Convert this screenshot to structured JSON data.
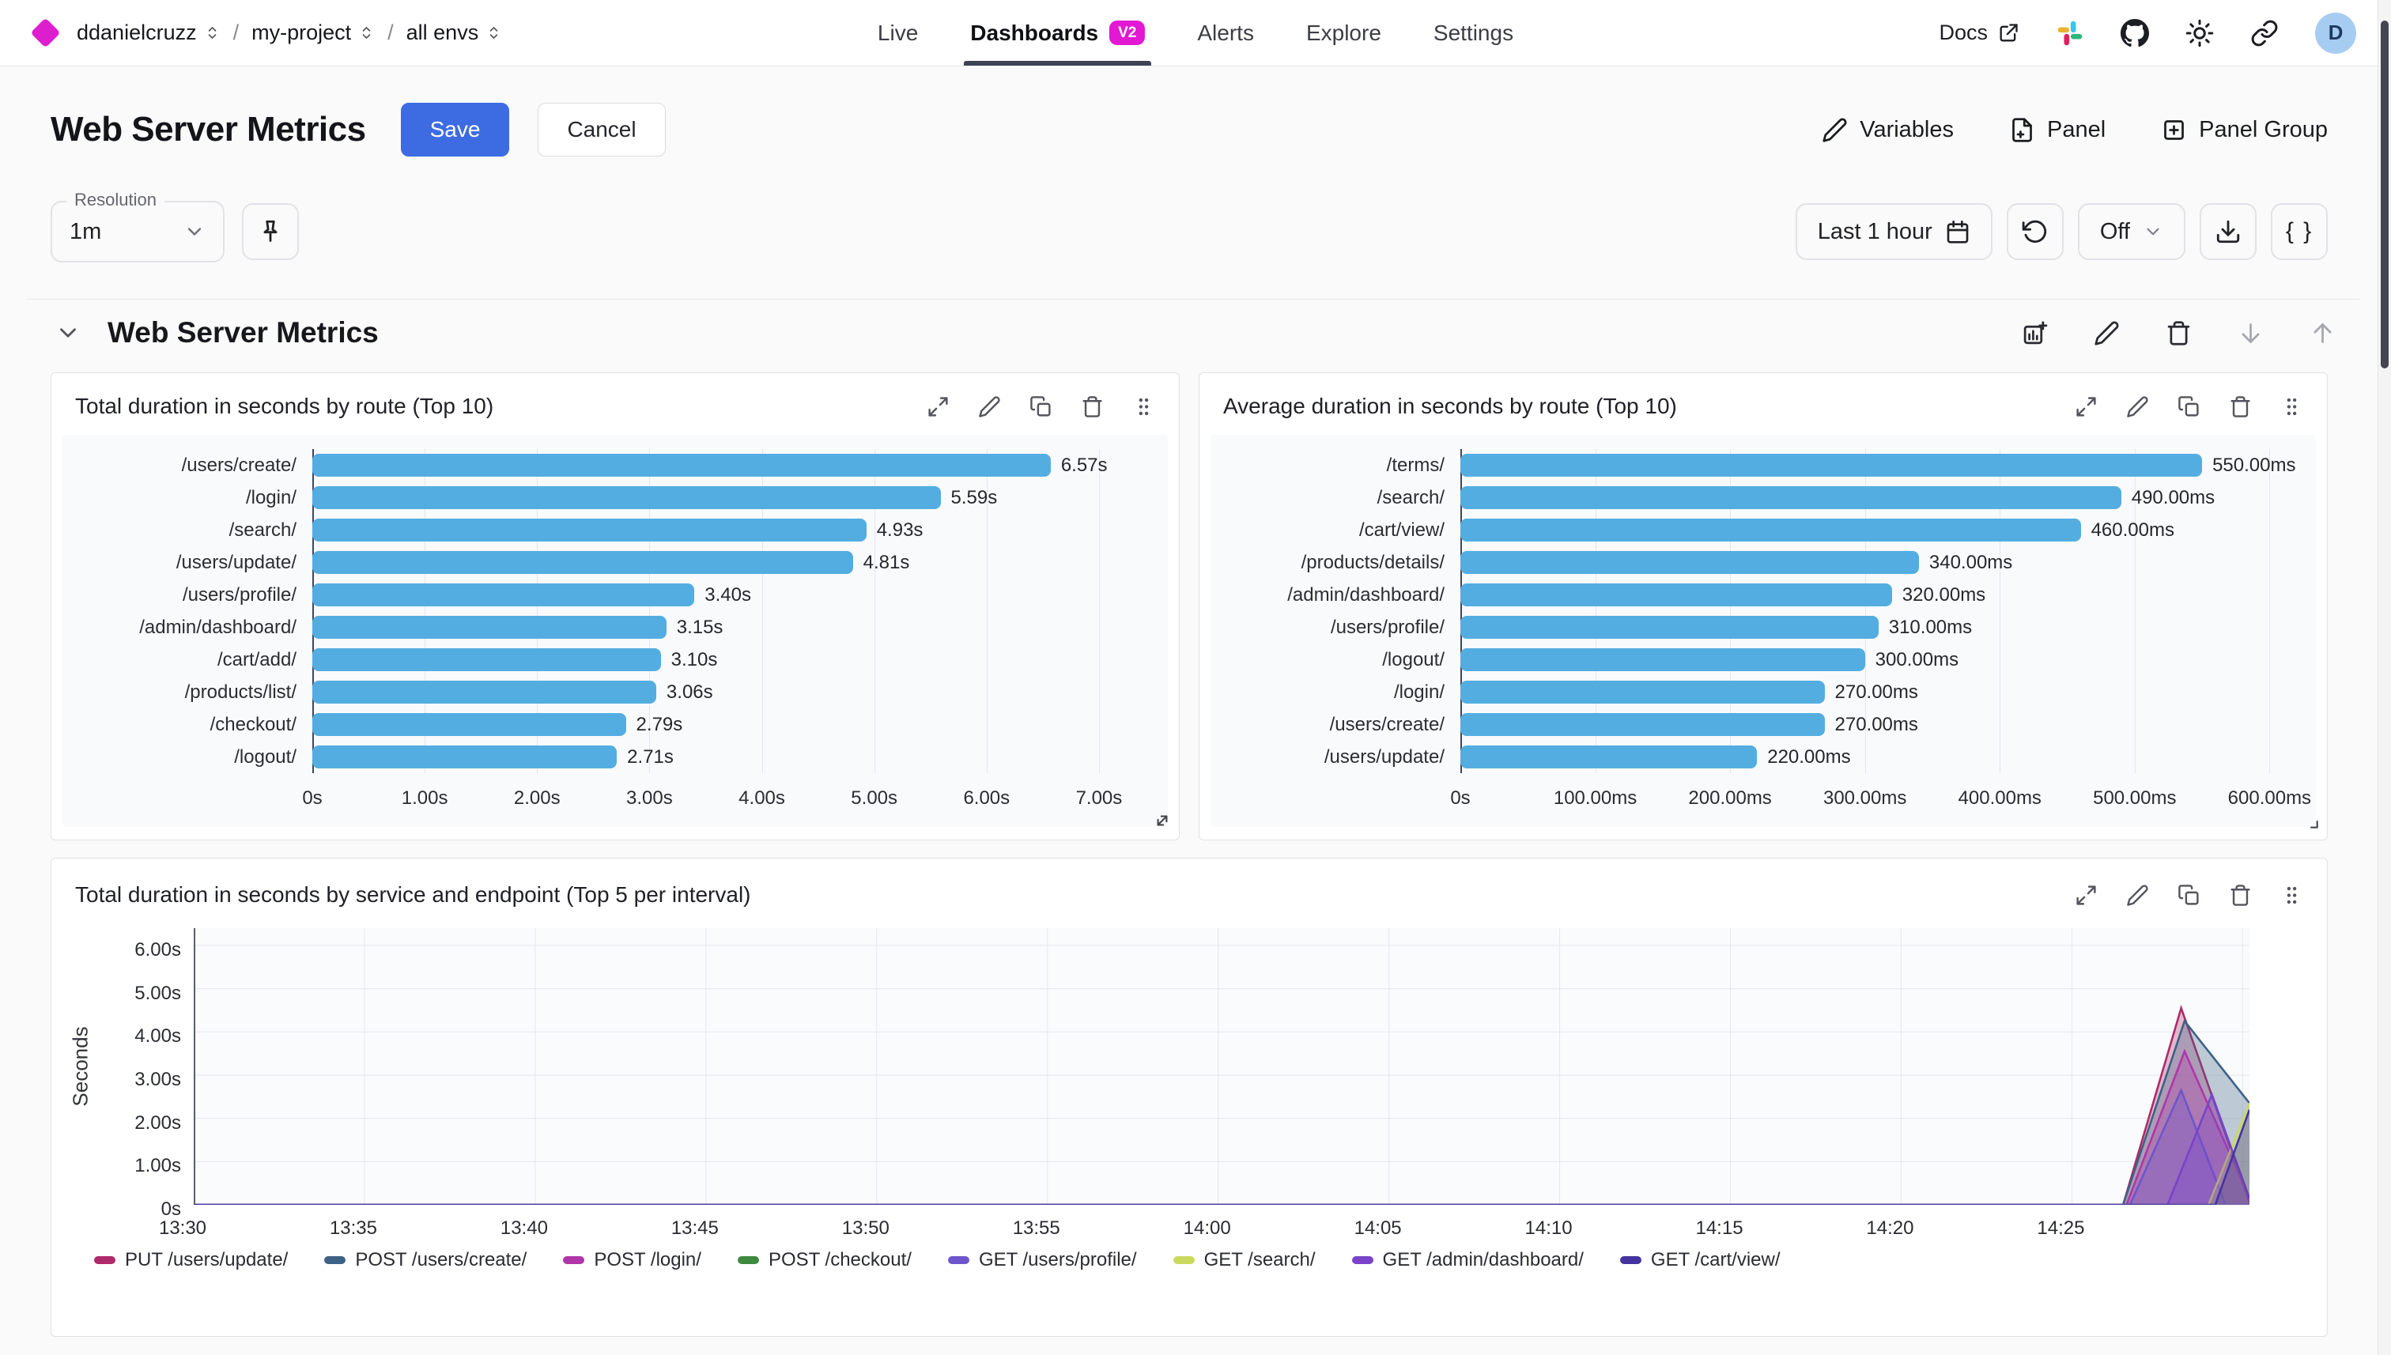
{
  "colors": {
    "accent_blue": "#3d6ce2",
    "badge_magenta": "#e218d3",
    "logo_magenta": "#dd1ece",
    "bar_blue": "#54ade0",
    "tab_underline": "#3e4354"
  },
  "icons": {
    "logo": "diamond-shape",
    "breadcrumb-selector": "up-down-chevrons",
    "docs": "external-link",
    "nav": [
      "slack-icon",
      "github-icon",
      "sun-icon",
      "link-icon"
    ],
    "toolbar": [
      "pin-icon",
      "calendar-icon",
      "refresh-ccw-icon",
      "chevron-down-icon",
      "download-icon",
      "braces-glyph"
    ],
    "panel": [
      "expand-icon",
      "pencil-icon",
      "copy-icon",
      "trash-icon",
      "drag-handle-dots"
    ],
    "section": [
      "chevron-down-icon",
      "add-chart-icon",
      "pencil-icon",
      "trash-icon",
      "arrow-down-icon",
      "arrow-up-icon"
    ]
  },
  "nav": {
    "breadcrumb": [
      {
        "label": "ddanielcruzz"
      },
      {
        "label": "my-project"
      },
      {
        "label": "all envs"
      }
    ],
    "tabs": [
      {
        "label": "Live",
        "active": false
      },
      {
        "label": "Dashboards",
        "active": true,
        "badge": "V2"
      },
      {
        "label": "Alerts",
        "active": false
      },
      {
        "label": "Explore",
        "active": false
      },
      {
        "label": "Settings",
        "active": false
      }
    ],
    "docs_label": "Docs",
    "avatar_letter": "D"
  },
  "header": {
    "title": "Web Server Metrics",
    "save_label": "Save",
    "cancel_label": "Cancel",
    "actions": [
      {
        "label": "Variables"
      },
      {
        "label": "Panel"
      },
      {
        "label": "Panel Group"
      }
    ]
  },
  "toolbar": {
    "resolution_label": "Resolution",
    "resolution_value": "1m",
    "time_range": "Last 1 hour",
    "autorefresh_value": "Off",
    "braces_label": "{ }"
  },
  "section": {
    "title": "Web Server Metrics"
  },
  "chart_data": [
    {
      "type": "bar",
      "orientation": "horizontal",
      "title": "Total duration in seconds by route (Top 10)",
      "categories": [
        "/users/create/",
        "/login/",
        "/search/",
        "/users/update/",
        "/users/profile/",
        "/admin/dashboard/",
        "/cart/add/",
        "/products/list/",
        "/checkout/",
        "/logout/"
      ],
      "values": [
        6.57,
        5.59,
        4.93,
        4.81,
        3.4,
        3.15,
        3.1,
        3.06,
        2.79,
        2.71
      ],
      "value_labels": [
        "6.57s",
        "5.59s",
        "4.93s",
        "4.81s",
        "3.40s",
        "3.15s",
        "3.10s",
        "3.06s",
        "2.79s",
        "2.71s"
      ],
      "x_ticks": [
        {
          "v": 0,
          "label": "0s"
        },
        {
          "v": 1,
          "label": "1.00s"
        },
        {
          "v": 2,
          "label": "2.00s"
        },
        {
          "v": 3,
          "label": "3.00s"
        },
        {
          "v": 4,
          "label": "4.00s"
        },
        {
          "v": 5,
          "label": "5.00s"
        },
        {
          "v": 6,
          "label": "6.00s"
        },
        {
          "v": 7,
          "label": "7.00s"
        }
      ],
      "xmax": 7.5,
      "bar_color": "#54ade0",
      "grid": true
    },
    {
      "type": "bar",
      "orientation": "horizontal",
      "title": "Average duration in seconds by route (Top 10)",
      "categories": [
        "/terms/",
        "/search/",
        "/cart/view/",
        "/products/details/",
        "/admin/dashboard/",
        "/users/profile/",
        "/logout/",
        "/login/",
        "/users/create/",
        "/users/update/"
      ],
      "values": [
        550,
        490,
        460,
        340,
        320,
        310,
        300,
        270,
        270,
        220
      ],
      "value_labels": [
        "550.00ms",
        "490.00ms",
        "460.00ms",
        "340.00ms",
        "320.00ms",
        "310.00ms",
        "300.00ms",
        "270.00ms",
        "270.00ms",
        "220.00ms"
      ],
      "x_ticks": [
        {
          "v": 0,
          "label": "0s"
        },
        {
          "v": 100,
          "label": "100.00ms"
        },
        {
          "v": 200,
          "label": "200.00ms"
        },
        {
          "v": 300,
          "label": "300.00ms"
        },
        {
          "v": 400,
          "label": "400.00ms"
        },
        {
          "v": 500,
          "label": "500.00ms"
        },
        {
          "v": 600,
          "label": "600.00ms"
        }
      ],
      "xmax": 625,
      "bar_color": "#54ade0",
      "grid": true
    },
    {
      "type": "area",
      "title": "Total duration in seconds by service and endpoint (Top 5 per interval)",
      "ylabel": "Seconds",
      "ymax": 6.4,
      "y_ticks": [
        {
          "v": 0,
          "label": "0s"
        },
        {
          "v": 1,
          "label": "1.00s"
        },
        {
          "v": 2,
          "label": "2.00s"
        },
        {
          "v": 3,
          "label": "3.00s"
        },
        {
          "v": 4,
          "label": "4.00s"
        },
        {
          "v": 5,
          "label": "5.00s"
        },
        {
          "v": 6,
          "label": "6.00s"
        }
      ],
      "x_domain_minutes": [
        0,
        60.2
      ],
      "x_ticks": [
        {
          "m": 0,
          "label": "13:30"
        },
        {
          "m": 5,
          "label": "13:35"
        },
        {
          "m": 10,
          "label": "13:40"
        },
        {
          "m": 15,
          "label": "13:45"
        },
        {
          "m": 20,
          "label": "13:50"
        },
        {
          "m": 25,
          "label": "13:55"
        },
        {
          "m": 30,
          "label": "14:00"
        },
        {
          "m": 35,
          "label": "14:05"
        },
        {
          "m": 40,
          "label": "14:10"
        },
        {
          "m": 45,
          "label": "14:15"
        },
        {
          "m": 50,
          "label": "14:20"
        },
        {
          "m": 55,
          "label": "14:25"
        }
      ],
      "grid": true,
      "legend_position": "bottom",
      "series": [
        {
          "name": "PUT /users/update/",
          "color": "#ae2a6b",
          "points": [
            [
              0,
              0
            ],
            [
              56.5,
              0
            ],
            [
              58.2,
              4.55
            ],
            [
              60.2,
              0.05
            ]
          ]
        },
        {
          "name": "POST /users/create/",
          "color": "#3e6286",
          "points": [
            [
              0,
              0
            ],
            [
              56.5,
              0
            ],
            [
              58.3,
              4.25
            ],
            [
              60.2,
              2.35
            ]
          ]
        },
        {
          "name": "POST /login/",
          "color": "#b136a9",
          "points": [
            [
              0,
              0
            ],
            [
              56.6,
              0
            ],
            [
              58.3,
              3.55
            ],
            [
              60.2,
              0.15
            ]
          ]
        },
        {
          "name": "POST /checkout/",
          "color": "#3e8a41",
          "points": [
            [
              0,
              0
            ],
            [
              60.2,
              0
            ]
          ]
        },
        {
          "name": "GET /users/profile/",
          "color": "#6e55cc",
          "points": [
            [
              0,
              0
            ],
            [
              56.7,
              0
            ],
            [
              58.2,
              2.65
            ],
            [
              59.5,
              0
            ],
            [
              60.2,
              0
            ]
          ]
        },
        {
          "name": "GET /search/",
          "color": "#cbd95f",
          "points": [
            [
              0,
              0
            ],
            [
              59.0,
              0
            ],
            [
              60.2,
              2.35
            ]
          ]
        },
        {
          "name": "GET /admin/dashboard/",
          "color": "#7a43c9",
          "points": [
            [
              0,
              0
            ],
            [
              57.8,
              0
            ],
            [
              59.1,
              2.55
            ],
            [
              60.2,
              0.15
            ]
          ]
        },
        {
          "name": "GET /cart/view/",
          "color": "#44349f",
          "points": [
            [
              0,
              0
            ],
            [
              59.2,
              0
            ],
            [
              60.2,
              2.2
            ]
          ]
        }
      ]
    }
  ]
}
